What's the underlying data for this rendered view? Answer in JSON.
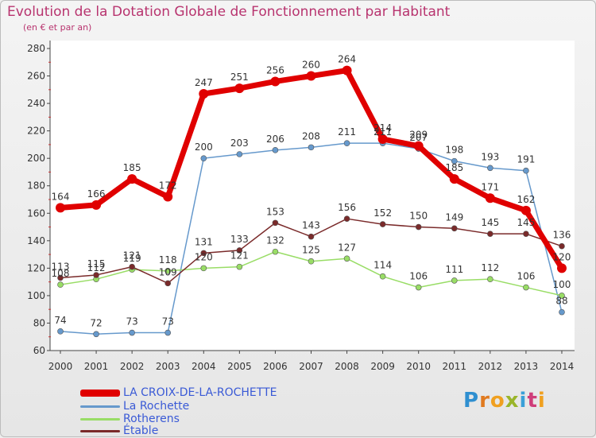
{
  "chart_data": {
    "type": "line",
    "title": "Evolution de la Dotation Globale de Fonctionnement par Habitant",
    "subtitle": "(en € et par an)",
    "categories": [
      "2000",
      "2001",
      "2002",
      "2003",
      "2004",
      "2005",
      "2006",
      "2007",
      "2008",
      "2009",
      "2010",
      "2011",
      "2012",
      "2013",
      "2014"
    ],
    "ylim": [
      60,
      280
    ],
    "yticks": [
      60,
      80,
      100,
      120,
      140,
      160,
      180,
      200,
      220,
      240,
      260,
      280
    ],
    "grid": false,
    "legend_position": "bottom-left",
    "series": [
      {
        "name": "LA CROIX-DE-LA-ROCHETTE",
        "color": "#e00000",
        "values": [
          164,
          166,
          185,
          172,
          247,
          251,
          256,
          260,
          264,
          214,
          209,
          185,
          171,
          162,
          120
        ]
      },
      {
        "name": "La Rochette",
        "color": "#6699cc",
        "values": [
          74,
          72,
          73,
          73,
          200,
          203,
          206,
          208,
          211,
          211,
          207,
          198,
          193,
          191,
          88
        ]
      },
      {
        "name": "Rotherens",
        "color": "#99dd66",
        "values": [
          108,
          112,
          119,
          118,
          120,
          121,
          132,
          125,
          127,
          114,
          106,
          111,
          112,
          106,
          100
        ]
      },
      {
        "name": "Étable",
        "color": "#7a2a2a",
        "values": [
          113,
          115,
          121,
          109,
          131,
          133,
          153,
          143,
          156,
          152,
          150,
          149,
          145,
          145,
          136
        ]
      }
    ]
  },
  "logo": {
    "letters": [
      "P",
      "r",
      "o",
      "x",
      "i",
      "t",
      "i"
    ]
  }
}
